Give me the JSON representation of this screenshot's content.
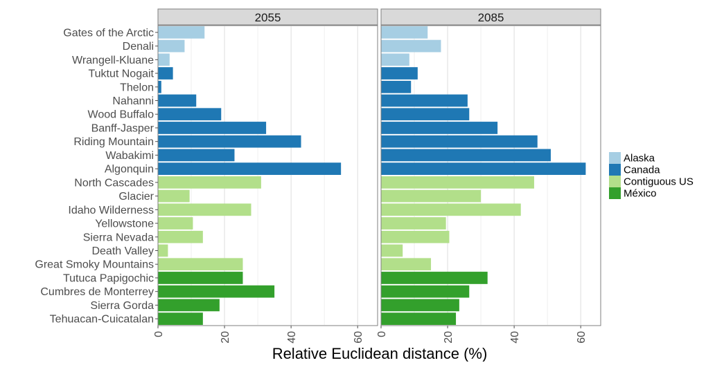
{
  "chart_data": {
    "type": "bar",
    "orientation": "horizontal",
    "xlabel": "Relative Euclidean distance (%)",
    "ylabel": "",
    "xlim": [
      0,
      66
    ],
    "x_ticks": [
      0,
      20,
      40,
      60
    ],
    "grid": true,
    "legend_position": "right",
    "groups": [
      {
        "name": "Alaska",
        "color": "#a6cee3"
      },
      {
        "name": "Canada",
        "color": "#1f78b4"
      },
      {
        "name": "Contiguous US",
        "color": "#b2df8a"
      },
      {
        "name": "México",
        "color": "#33a02c"
      }
    ],
    "categories": [
      "Gates of the Arctic",
      "Denali",
      "Wrangell-Kluane",
      "Tuktut Nogait",
      "Thelon",
      "Nahanni",
      "Wood Buffalo",
      "Banff-Jasper",
      "Riding Mountain",
      "Wabakimi",
      "Algonquin",
      "North Cascades",
      "Glacier",
      "Idaho Wilderness",
      "Yellowstone",
      "Sierra Nevada",
      "Death Valley",
      "Great Smoky Mountains",
      "Tutuca Papigochic",
      "Cumbres de Monterrey",
      "Sierra Gorda",
      "Tehuacan-Cuicatalan"
    ],
    "category_groups": [
      "Alaska",
      "Alaska",
      "Alaska",
      "Canada",
      "Canada",
      "Canada",
      "Canada",
      "Canada",
      "Canada",
      "Canada",
      "Canada",
      "Contiguous US",
      "Contiguous US",
      "Contiguous US",
      "Contiguous US",
      "Contiguous US",
      "Contiguous US",
      "Contiguous US",
      "México",
      "México",
      "México",
      "México"
    ],
    "panels": [
      {
        "title": "2055",
        "values": [
          14,
          8,
          3.5,
          4.5,
          1,
          11.5,
          19,
          32.5,
          43,
          23,
          55,
          31,
          9.5,
          28,
          10.5,
          13.5,
          3,
          25.5,
          25.5,
          35,
          18.5,
          13.5
        ]
      },
      {
        "title": "2085",
        "values": [
          14,
          18,
          8.5,
          11,
          9,
          26,
          26.5,
          35,
          47,
          51,
          61.5,
          46,
          30,
          42,
          19.5,
          20.5,
          6.5,
          15,
          32,
          26.5,
          23.5,
          22.5
        ]
      }
    ]
  }
}
